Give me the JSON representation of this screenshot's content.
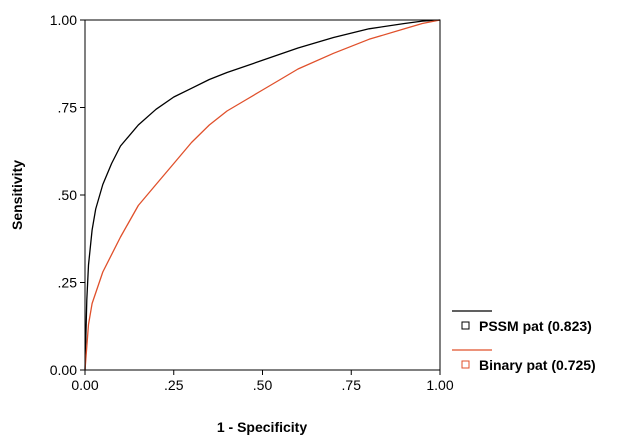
{
  "chart_data": {
    "type": "line",
    "title": "",
    "xlabel": "1 - Specificity",
    "ylabel": "Sensitivity",
    "xlim": [
      0,
      1
    ],
    "ylim": [
      0,
      1
    ],
    "x_ticks": [
      {
        "value": 0,
        "label": "0.00"
      },
      {
        "value": 0.25,
        "label": ".25"
      },
      {
        "value": 0.5,
        "label": ".50"
      },
      {
        "value": 0.75,
        "label": ".75"
      },
      {
        "value": 1,
        "label": "1.00"
      }
    ],
    "y_ticks": [
      {
        "value": 0,
        "label": "0.00"
      },
      {
        "value": 0.25,
        "label": ".25"
      },
      {
        "value": 0.5,
        "label": ".50"
      },
      {
        "value": 0.75,
        "label": ".75"
      },
      {
        "value": 1,
        "label": "1.00"
      }
    ],
    "grid": false,
    "legend_position": "bottom-right outside",
    "series": [
      {
        "name": "PSSM pat (0.823)",
        "color": "#000000",
        "x": [
          0,
          0.005,
          0.01,
          0.02,
          0.03,
          0.05,
          0.075,
          0.1,
          0.15,
          0.2,
          0.25,
          0.3,
          0.35,
          0.4,
          0.5,
          0.6,
          0.7,
          0.8,
          0.9,
          0.95,
          1
        ],
        "y": [
          0,
          0.2,
          0.3,
          0.4,
          0.46,
          0.53,
          0.59,
          0.64,
          0.7,
          0.745,
          0.78,
          0.805,
          0.83,
          0.85,
          0.885,
          0.92,
          0.95,
          0.975,
          0.99,
          0.997,
          1
        ]
      },
      {
        "name": "Binary pat (0.725)",
        "color": "#e0502b",
        "x": [
          0,
          0.01,
          0.02,
          0.05,
          0.1,
          0.15,
          0.2,
          0.25,
          0.3,
          0.35,
          0.4,
          0.45,
          0.5,
          0.55,
          0.6,
          0.7,
          0.8,
          0.9,
          0.95,
          1
        ],
        "y": [
          0,
          0.13,
          0.19,
          0.28,
          0.38,
          0.47,
          0.53,
          0.59,
          0.65,
          0.7,
          0.74,
          0.77,
          0.8,
          0.83,
          0.86,
          0.905,
          0.945,
          0.975,
          0.99,
          1
        ]
      }
    ]
  }
}
